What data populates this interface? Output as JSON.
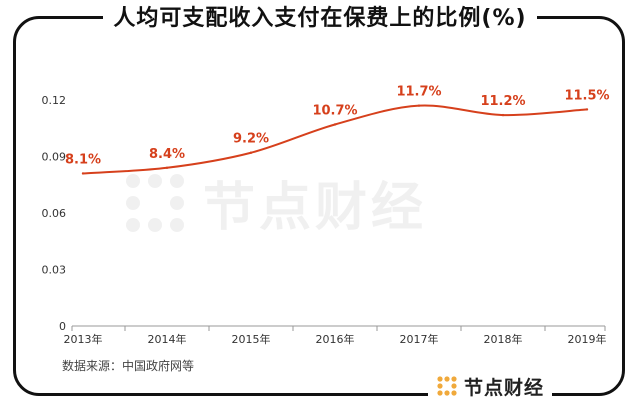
{
  "title": "人均可支配收入支付在保费上的比例(%)",
  "source": "数据来源：中国政府网等",
  "brand": {
    "name": "节点财经",
    "logo_icon": "dots-grid-logo-icon"
  },
  "watermark": {
    "name": "节点财经"
  },
  "colors": {
    "line": "#d6401c",
    "label": "#d6401c",
    "axis": "#999999",
    "frame": "#111111",
    "logo_accent": "#f0a93b"
  },
  "chart_data": {
    "type": "line",
    "title": "人均可支配收入支付在保费上的比例(%)",
    "xlabel": "",
    "ylabel": "",
    "categories": [
      "2013年",
      "2014年",
      "2015年",
      "2016年",
      "2017年",
      "2018年",
      "2019年"
    ],
    "values": [
      0.081,
      0.084,
      0.092,
      0.107,
      0.117,
      0.112,
      0.115
    ],
    "data_labels": [
      "8.1%",
      "8.4%",
      "9.2%",
      "10.7%",
      "11.7%",
      "11.2%",
      "11.5%"
    ],
    "yticks": [
      "0",
      "0.03",
      "0.06",
      "0.09",
      "0.12"
    ],
    "ylim": [
      0,
      0.12
    ],
    "grid": false,
    "legend": "none",
    "smooth": true
  }
}
